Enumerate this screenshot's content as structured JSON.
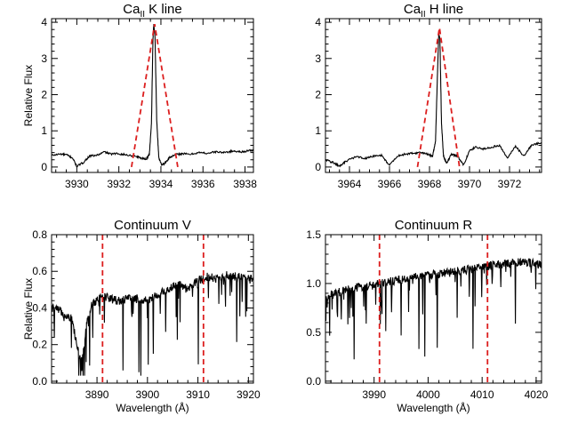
{
  "chart_data": [
    {
      "type": "line",
      "title": "CaII K line",
      "title_parts": {
        "main": "Ca",
        "sub": "II",
        "rest": " K line"
      },
      "xlabel": "",
      "ylabel": "Relative Flux",
      "xlim": [
        3928.8,
        3938.4
      ],
      "ylim": [
        -0.15,
        4.1
      ],
      "xticks": [
        3930,
        3932,
        3934,
        3936,
        3938
      ],
      "yticks": [
        0,
        1,
        2,
        3,
        4
      ],
      "series": [
        {
          "style": "spectrum",
          "color": "#000000",
          "x": [
            3928.8,
            3929.2,
            3929.5,
            3929.8,
            3930.0,
            3930.3,
            3930.6,
            3931.0,
            3931.3,
            3931.6,
            3932.0,
            3932.4,
            3932.8,
            3933.1,
            3933.3,
            3933.45,
            3933.55,
            3933.62,
            3933.66,
            3933.72,
            3933.8,
            3933.9,
            3934.05,
            3934.2,
            3934.4,
            3934.7,
            3935.0,
            3935.4,
            3935.8,
            3936.2,
            3936.6,
            3937.0,
            3937.4,
            3937.8,
            3938.2,
            3938.4
          ],
          "y": [
            0.32,
            0.36,
            0.34,
            0.25,
            0.02,
            0.12,
            0.3,
            0.33,
            0.42,
            0.36,
            0.37,
            0.33,
            0.3,
            0.24,
            0.22,
            0.35,
            1.2,
            3.5,
            3.95,
            3.6,
            1.3,
            0.25,
            0.05,
            0.12,
            0.26,
            0.34,
            0.37,
            0.35,
            0.4,
            0.38,
            0.42,
            0.4,
            0.44,
            0.42,
            0.45,
            0.47
          ]
        },
        {
          "style": "dashed",
          "color": "#dc1e1e",
          "x": [
            3932.6,
            3933.7,
            3934.8
          ],
          "y": [
            0.0,
            3.95,
            0.0
          ]
        }
      ]
    },
    {
      "type": "line",
      "title": "CaII H line",
      "title_parts": {
        "main": "Ca",
        "sub": "II",
        "rest": " H line"
      },
      "xlabel": "",
      "ylabel": "",
      "xlim": [
        3962.8,
        3973.6
      ],
      "ylim": [
        -0.15,
        4.1
      ],
      "xticks": [
        3964,
        3966,
        3968,
        3970,
        3972
      ],
      "yticks": [
        0,
        1,
        2,
        3,
        4
      ],
      "series": [
        {
          "style": "spectrum",
          "color": "#000000",
          "x": [
            3962.8,
            3963.2,
            3963.5,
            3963.8,
            3964.3,
            3964.8,
            3965.2,
            3965.6,
            3966.0,
            3966.4,
            3966.8,
            3967.2,
            3967.6,
            3967.9,
            3968.15,
            3968.3,
            3968.4,
            3968.46,
            3968.52,
            3968.6,
            3968.7,
            3968.85,
            3969.1,
            3969.4,
            3969.7,
            3970.0,
            3970.3,
            3970.7,
            3971.1,
            3971.5,
            3971.9,
            3972.3,
            3972.7,
            3973.1,
            3973.6
          ],
          "y": [
            0.2,
            0.12,
            0.02,
            0.15,
            0.28,
            0.24,
            0.3,
            0.32,
            0.05,
            0.3,
            0.36,
            0.38,
            0.4,
            0.36,
            0.3,
            0.7,
            2.6,
            3.7,
            3.55,
            1.2,
            0.3,
            0.1,
            0.35,
            0.3,
            0.05,
            0.45,
            0.55,
            0.5,
            0.55,
            0.6,
            0.25,
            0.58,
            0.3,
            0.6,
            0.68
          ]
        },
        {
          "style": "dashed",
          "color": "#dc1e1e",
          "x": [
            3967.4,
            3968.5,
            3969.5
          ],
          "y": [
            0.0,
            3.85,
            0.0
          ]
        }
      ]
    },
    {
      "type": "line",
      "title": "Continuum V",
      "xlabel": "Wavelength (Å)",
      "ylabel": "Relative Flux",
      "xlim": [
        3881,
        3921
      ],
      "ylim": [
        -0.01,
        0.8
      ],
      "xticks": [
        3890,
        3900,
        3910,
        3920
      ],
      "yticks": [
        0.0,
        0.2,
        0.4,
        0.6,
        0.8
      ],
      "ytick_labels": [
        "0.0",
        "0.2",
        "0.4",
        "0.6",
        "0.8"
      ],
      "series": [
        {
          "style": "noisy-spectrum",
          "color": "#000000",
          "x": [
            3881,
            3883,
            3885,
            3886,
            3887,
            3888,
            3889,
            3890,
            3891,
            3892,
            3894,
            3896,
            3898,
            3900,
            3902,
            3904,
            3906,
            3908,
            3910,
            3912,
            3914,
            3916,
            3918,
            3920,
            3921
          ],
          "y": [
            0.4,
            0.38,
            0.34,
            0.2,
            0.1,
            0.32,
            0.42,
            0.45,
            0.47,
            0.46,
            0.44,
            0.45,
            0.45,
            0.44,
            0.47,
            0.5,
            0.53,
            0.5,
            0.55,
            0.57,
            0.56,
            0.58,
            0.57,
            0.56,
            0.55
          ]
        }
      ],
      "vlines": [
        3891.1,
        3911.1
      ]
    },
    {
      "type": "line",
      "title": "Continuum R",
      "xlabel": "Wavelength (Å)",
      "ylabel": "",
      "xlim": [
        3981,
        4021
      ],
      "ylim": [
        -0.02,
        1.5
      ],
      "xticks": [
        3990,
        4000,
        4010,
        4020
      ],
      "yticks": [
        0.0,
        0.5,
        1.0,
        1.5
      ],
      "ytick_labels": [
        "0.0",
        "0.5",
        "1.0",
        "1.5"
      ],
      "series": [
        {
          "style": "noisy-spectrum",
          "color": "#000000",
          "x": [
            3981,
            3984,
            3987,
            3990,
            3993,
            3996,
            3999,
            4002,
            4005,
            4008,
            4011,
            4014,
            4017,
            4020,
            4021
          ],
          "y": [
            0.85,
            0.92,
            0.96,
            0.98,
            1.02,
            1.05,
            1.08,
            1.1,
            1.12,
            1.15,
            1.18,
            1.2,
            1.22,
            1.2,
            1.18
          ]
        }
      ],
      "vlines": [
        3991.0,
        4011.0
      ]
    }
  ]
}
